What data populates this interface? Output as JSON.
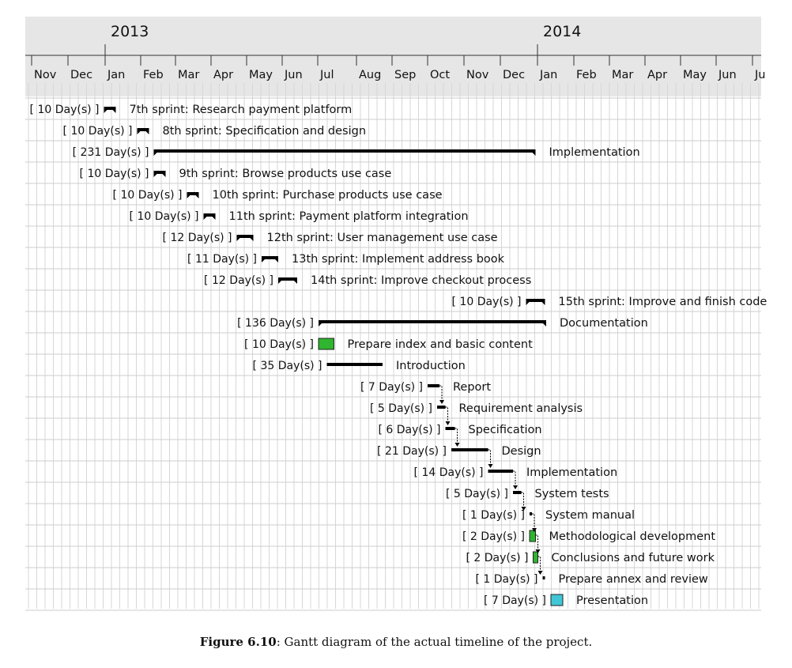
{
  "timeline": {
    "years": [
      "2013",
      "2014"
    ],
    "months": [
      "Nov",
      "Dec",
      "Jan",
      "Feb",
      "Mar",
      "Apr",
      "May",
      "Jun",
      "Jul",
      "Aug",
      "Sep",
      "Oct",
      "Nov",
      "Dec",
      "Jan",
      "Feb",
      "Mar",
      "Apr",
      "May",
      "Jun",
      "Ju"
    ]
  },
  "tasks": [
    {
      "duration": "[ 10 Day(s) ]",
      "name": "7th sprint: Research payment platform",
      "start": "2013-01-01",
      "end": "2013-01-11",
      "kind": "summary"
    },
    {
      "duration": "[ 10 Day(s) ]",
      "name": "8th sprint: Specification and design",
      "start": "2013-01-29",
      "end": "2013-02-08",
      "kind": "summary"
    },
    {
      "duration": "[ 231 Day(s) ]",
      "name": "Implementation",
      "start": "2013-02-12",
      "end": "2013-12-31",
      "kind": "summary"
    },
    {
      "duration": "[ 10 Day(s) ]",
      "name": "9th sprint: Browse products use case",
      "start": "2013-02-12",
      "end": "2013-02-22",
      "kind": "summary"
    },
    {
      "duration": "[ 10 Day(s) ]",
      "name": "10th sprint: Purchase products use case",
      "start": "2013-03-12",
      "end": "2013-03-22",
      "kind": "summary"
    },
    {
      "duration": "[ 10 Day(s) ]",
      "name": "11th sprint: Payment platform integration",
      "start": "2013-03-26",
      "end": "2013-04-05",
      "kind": "summary"
    },
    {
      "duration": "[ 12 Day(s) ]",
      "name": "12th sprint: User management use case",
      "start": "2013-04-23",
      "end": "2013-05-07",
      "kind": "summary"
    },
    {
      "duration": "[ 11 Day(s) ]",
      "name": "13th sprint: Implement address book",
      "start": "2013-05-14",
      "end": "2013-05-28",
      "kind": "summary"
    },
    {
      "duration": "[ 12 Day(s) ]",
      "name": "14th sprint: Improve checkout process",
      "start": "2013-05-28",
      "end": "2013-06-13",
      "kind": "summary"
    },
    {
      "duration": "[ 10 Day(s) ]",
      "name": "15th sprint: Improve and finish code",
      "start": "2013-12-23",
      "end": "2014-01-08",
      "kind": "summary"
    },
    {
      "duration": "[ 136 Day(s) ]",
      "name": "Documentation",
      "start": "2013-07-01",
      "end": "2014-01-09",
      "kind": "summary"
    },
    {
      "duration": "[ 10 Day(s) ]",
      "name": "Prepare index and basic content",
      "start": "2013-07-01",
      "end": "2013-07-14",
      "kind": "task",
      "color": "#2fb52f"
    },
    {
      "duration": "[ 35 Day(s) ]",
      "name": "Introduction",
      "start": "2013-07-08",
      "end": "2013-08-24",
      "kind": "bar"
    },
    {
      "duration": "[ 7 Day(s) ]",
      "name": "Report",
      "start": "2013-10-01",
      "end": "2013-10-11",
      "kind": "bar"
    },
    {
      "duration": "[ 5 Day(s) ]",
      "name": "Requirement analysis",
      "start": "2013-10-09",
      "end": "2013-10-16",
      "kind": "bar"
    },
    {
      "duration": "[ 6 Day(s) ]",
      "name": "Specification",
      "start": "2013-10-16",
      "end": "2013-10-24",
      "kind": "bar"
    },
    {
      "duration": "[ 21 Day(s) ]",
      "name": "Design",
      "start": "2013-10-21",
      "end": "2013-11-21",
      "kind": "bar"
    },
    {
      "duration": "[ 14 Day(s) ]",
      "name": "Implementation",
      "start": "2013-11-21",
      "end": "2013-12-12",
      "kind": "bar"
    },
    {
      "duration": "[ 5 Day(s) ]",
      "name": "System tests",
      "start": "2013-12-12",
      "end": "2013-12-19",
      "kind": "bar"
    },
    {
      "duration": "[ 1 Day(s) ]",
      "name": "System manual",
      "start": "2013-12-26",
      "end": "2013-12-28",
      "kind": "bar"
    },
    {
      "duration": "[ 2 Day(s) ]",
      "name": "Methodological development",
      "start": "2013-12-26",
      "end": "2013-12-31",
      "kind": "task",
      "color": "#2fb52f"
    },
    {
      "duration": "[ 2 Day(s) ]",
      "name": "Conclusions and future work",
      "start": "2013-12-29",
      "end": "2014-01-02",
      "kind": "task",
      "color": "#2fb52f"
    },
    {
      "duration": "[ 1 Day(s) ]",
      "name": "Prepare annex and review",
      "start": "2014-01-06",
      "end": "2014-01-08",
      "kind": "bar"
    },
    {
      "duration": "[ 7 Day(s) ]",
      "name": "Presentation",
      "start": "2014-01-13",
      "end": "2014-01-23",
      "kind": "task",
      "color": "#3fc7d6"
    }
  ],
  "dependency_chain": [
    "Report",
    "Requirement analysis",
    "Specification",
    "Design",
    "Implementation",
    "System tests",
    "System manual",
    "Methodological development",
    "Conclusions and future work",
    "Prepare annex and review"
  ],
  "colors": {
    "header_bg": "#e6e6e6",
    "grid_line": "#d7d7d7",
    "row_line": "#cccccc",
    "bar": "#000000"
  },
  "caption": {
    "label": "Figure 6.10",
    "text": ": Gantt diagram of the actual timeline of the project."
  }
}
